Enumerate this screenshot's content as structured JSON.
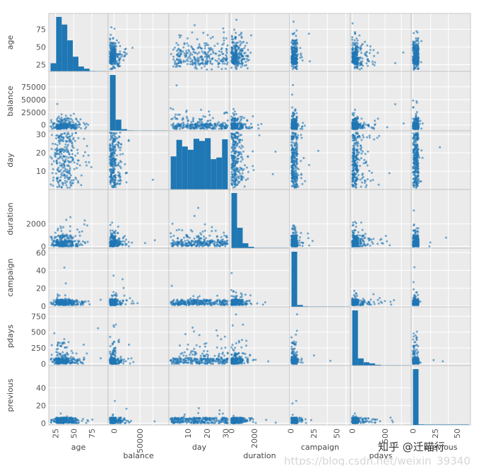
{
  "chart_data": {
    "type": "scatter",
    "chart_kind": "scatter-matrix",
    "grid": true,
    "diagonal": "histogram",
    "marker_color": "#1f77b4",
    "panel_background": "#ebebeb",
    "variables": [
      {
        "name": "age",
        "range": [
          18,
          95
        ],
        "ticks": [
          25,
          50,
          75
        ],
        "tick_labels": [
          "25",
          "50",
          "75"
        ],
        "x_tick_labels": [
          "25",
          "50",
          "75"
        ],
        "hist": [
          0.15,
          1.0,
          0.86,
          0.57,
          0.27,
          0.09,
          0.05,
          0.01,
          0.005,
          0.002
        ]
      },
      {
        "name": "balance",
        "range": [
          -8000,
          102000
        ],
        "ticks": [
          0,
          25000,
          50000,
          75000
        ],
        "tick_labels": [
          "0",
          "25000",
          "50000",
          "75000"
        ],
        "x_tick_labels": [
          "0",
          "50000"
        ],
        "hist": [
          1.0,
          0.2,
          0.03,
          0.01,
          0.004,
          0.002,
          0.001,
          0.0005,
          0.0003,
          0.0002
        ]
      },
      {
        "name": "day",
        "range": [
          1,
          31
        ],
        "ticks": [
          10,
          20,
          30
        ],
        "tick_labels": [
          "10",
          "20",
          "30"
        ],
        "x_tick_labels": [
          "10",
          "20",
          "30"
        ],
        "hist": [
          0.6,
          0.9,
          0.78,
          0.72,
          0.92,
          0.88,
          0.93,
          0.55,
          0.58,
          0.91
        ]
      },
      {
        "name": "duration",
        "range": [
          0,
          4900
        ],
        "ticks": [
          0,
          2000
        ],
        "tick_labels": [
          "0",
          "2000"
        ],
        "x_tick_labels": [
          "0",
          "2000"
        ],
        "hist": [
          1.0,
          0.37,
          0.09,
          0.025,
          0.008,
          0.003,
          0.001,
          0.0005,
          0.0003,
          0.0002
        ]
      },
      {
        "name": "campaign",
        "range": [
          1,
          63
        ],
        "ticks": [
          0,
          20,
          40,
          60
        ],
        "tick_labels": [
          "0",
          "20",
          "40",
          "60"
        ],
        "x_tick_labels": [
          "0",
          "25",
          "50"
        ],
        "hist": [
          1.0,
          0.035,
          0.01,
          0.003,
          0.001,
          0.0005,
          0.0002,
          0.0001,
          0.0001,
          0.0001
        ]
      },
      {
        "name": "pdays",
        "range": [
          -1,
          871
        ],
        "ticks": [
          0,
          250,
          500,
          750
        ],
        "tick_labels": [
          "0",
          "250",
          "500",
          "750"
        ],
        "x_tick_labels": [
          "0",
          "500"
        ],
        "hist": [
          1.0,
          0.13,
          0.06,
          0.04,
          0.015,
          0.006,
          0.003,
          0.002,
          0.001,
          0.0005
        ]
      },
      {
        "name": "previous",
        "range": [
          0,
          63
        ],
        "ticks": [
          0,
          20,
          40
        ],
        "tick_labels": [
          "0",
          "20",
          "40"
        ],
        "x_tick_labels": [
          "0",
          "25",
          "50"
        ],
        "hist": [
          1.0,
          0.01,
          0.002,
          0.001,
          0.0005,
          0.0002,
          0.0001,
          0.0001,
          0.0001,
          0.0001
        ]
      }
    ]
  },
  "watermark": {
    "text": "知乎 @迁喵行",
    "url_text": "https://blog.csdn.net/weixin_39340"
  }
}
